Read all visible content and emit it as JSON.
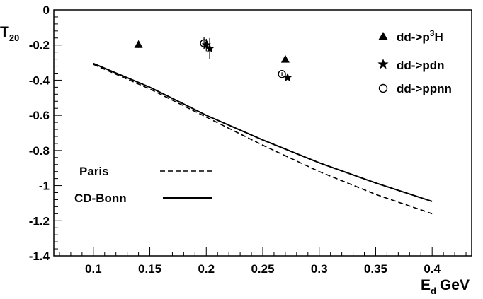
{
  "chart_data": {
    "type": "scatter",
    "xlabel": {
      "main": "E",
      "sub": "d",
      "unit": "GeV"
    },
    "ylabel": {
      "main": "T",
      "sub": "20"
    },
    "xlim": [
      0.065,
      0.435
    ],
    "ylim": [
      -1.4,
      0
    ],
    "xticks": [
      {
        "value": 0.1,
        "label": "0.1"
      },
      {
        "value": 0.15,
        "label": "0.15"
      },
      {
        "value": 0.2,
        "label": "0.2"
      },
      {
        "value": 0.25,
        "label": "0.25"
      },
      {
        "value": 0.3,
        "label": "0.3"
      },
      {
        "value": 0.35,
        "label": "0.35"
      },
      {
        "value": 0.4,
        "label": "0.4"
      }
    ],
    "yticks": [
      {
        "value": 0,
        "label": "0"
      },
      {
        "value": -0.2,
        "label": "-0.2"
      },
      {
        "value": -0.4,
        "label": "-0.4"
      },
      {
        "value": -0.6,
        "label": "-0.6"
      },
      {
        "value": -0.8,
        "label": "-0.8"
      },
      {
        "value": -1.0,
        "label": "-1"
      },
      {
        "value": -1.2,
        "label": "-1.2"
      },
      {
        "value": -1.4,
        "label": "-1.4"
      }
    ],
    "grid": false,
    "series": [
      {
        "name": "dd->p3H",
        "name_main": "dd->p",
        "name_sup": "3",
        "name_tail": "H",
        "kind": "points",
        "marker": "triangle",
        "points": [
          {
            "x": 0.14,
            "y": -0.196,
            "err": 0.02
          },
          {
            "x": 0.27,
            "y": -0.28,
            "err": 0.0
          }
        ]
      },
      {
        "name": "dd->pdn",
        "kind": "points",
        "marker": "star",
        "points": [
          {
            "x": 0.2,
            "y": -0.2,
            "err": 0.035
          },
          {
            "x": 0.203,
            "y": -0.22,
            "err": 0.06
          },
          {
            "x": 0.272,
            "y": -0.385,
            "err": 0.0
          }
        ]
      },
      {
        "name": "dd->ppnn",
        "kind": "points",
        "marker": "open-circle",
        "points": [
          {
            "x": 0.198,
            "y": -0.19,
            "err": 0.035
          },
          {
            "x": 0.267,
            "y": -0.365,
            "err": 0.01
          }
        ]
      },
      {
        "name": "Paris",
        "kind": "line",
        "style": "dashed",
        "x": [
          0.1,
          0.15,
          0.2,
          0.25,
          0.3,
          0.35,
          0.4
        ],
        "y": [
          -0.31,
          -0.45,
          -0.61,
          -0.77,
          -0.92,
          -1.05,
          -1.16
        ]
      },
      {
        "name": "CD-Bonn",
        "kind": "line",
        "style": "solid",
        "x": [
          0.1,
          0.15,
          0.2,
          0.25,
          0.3,
          0.35,
          0.4
        ],
        "y": [
          -0.305,
          -0.44,
          -0.6,
          -0.74,
          -0.87,
          -0.985,
          -1.09
        ]
      }
    ],
    "legend": {
      "points_position": "top-right",
      "lines_position": "bottom-left"
    }
  }
}
